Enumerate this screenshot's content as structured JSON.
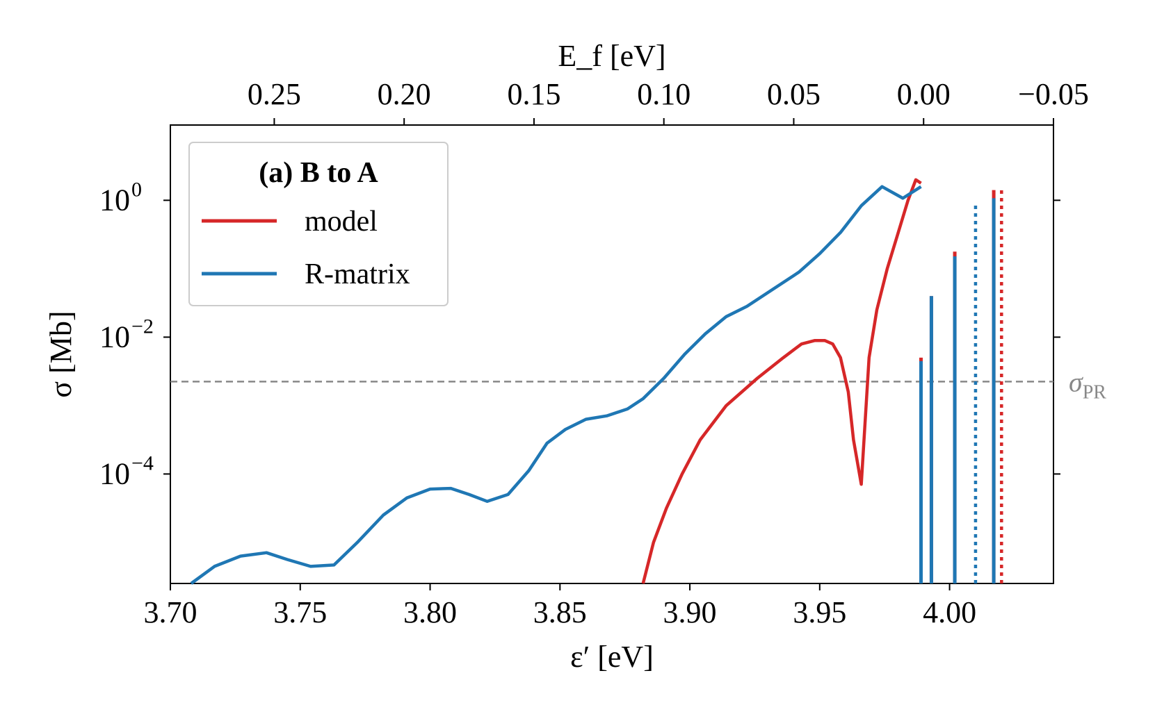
{
  "chart_data": {
    "type": "line",
    "title": "",
    "xlabel": "ε′ [eV]",
    "x2label": "E_f [eV]",
    "ylabel": "σ [Mb]",
    "xlim": [
      3.7,
      4.04
    ],
    "ylim_log10": [
      -5.6,
      1.1
    ],
    "xticks": [
      3.7,
      3.75,
      3.8,
      3.85,
      3.9,
      3.95,
      4.0
    ],
    "xtick_labels": [
      "3.70",
      "3.75",
      "3.80",
      "3.85",
      "3.90",
      "3.95",
      "4.00"
    ],
    "x2_offset": 3.99,
    "x2ticks": [
      0.25,
      0.2,
      0.15,
      0.1,
      0.05,
      0.0,
      -0.05
    ],
    "x2tick_labels": [
      "0.25",
      "0.20",
      "0.15",
      "0.10",
      "0.05",
      "0.00",
      "−0.05"
    ],
    "yticks_log10": [
      0,
      -2,
      -4
    ],
    "ytick_labels": [
      {
        "base": "10",
        "exp": "0"
      },
      {
        "base": "10",
        "exp": "−2"
      },
      {
        "base": "10",
        "exp": "−4"
      }
    ],
    "reference_line": {
      "name": "σ",
      "subscript": "PR",
      "log10_value": -2.65,
      "color": "#888888"
    },
    "colors": {
      "model": "#d62728",
      "rmatrix": "#1f77b4"
    },
    "legend": {
      "title_prefix": "(a)",
      "title": "B to A",
      "placement": "upper-left",
      "entries": [
        {
          "label": "model",
          "color": "#d62728"
        },
        {
          "label": "R-matrix",
          "color": "#1f77b4"
        }
      ]
    },
    "series": [
      {
        "name": "model",
        "color": "#d62728",
        "x": [
          3.882,
          3.886,
          3.891,
          3.897,
          3.904,
          3.914,
          3.926,
          3.936,
          3.943,
          3.948,
          3.952,
          3.955,
          3.958,
          3.961,
          3.963,
          3.966,
          3.969,
          3.972,
          3.976,
          3.98,
          3.984,
          3.987,
          3.989
        ],
        "log10_y": [
          -5.6,
          -5.0,
          -4.5,
          -4.0,
          -3.5,
          -3.0,
          -2.6,
          -2.3,
          -2.1,
          -2.05,
          -2.05,
          -2.1,
          -2.3,
          -2.8,
          -3.5,
          -4.15,
          -2.3,
          -1.6,
          -1.0,
          -0.5,
          0.0,
          0.3,
          0.25
        ]
      },
      {
        "name": "R-matrix",
        "color": "#1f77b4",
        "x": [
          3.708,
          3.717,
          3.727,
          3.737,
          3.745,
          3.754,
          3.763,
          3.772,
          3.782,
          3.791,
          3.8,
          3.808,
          3.815,
          3.822,
          3.83,
          3.838,
          3.845,
          3.852,
          3.86,
          3.868,
          3.876,
          3.882,
          3.89,
          3.898,
          3.906,
          3.914,
          3.922,
          3.932,
          3.942,
          3.95,
          3.958,
          3.966,
          3.974,
          3.982,
          3.989
        ],
        "log10_y": [
          -5.6,
          -5.35,
          -5.2,
          -5.15,
          -5.25,
          -5.35,
          -5.33,
          -5.0,
          -4.6,
          -4.35,
          -4.22,
          -4.21,
          -4.3,
          -4.4,
          -4.3,
          -3.95,
          -3.55,
          -3.35,
          -3.2,
          -3.15,
          -3.05,
          -2.9,
          -2.6,
          -2.25,
          -1.95,
          -1.7,
          -1.55,
          -1.3,
          -1.05,
          -0.78,
          -0.47,
          -0.08,
          0.2,
          0.03,
          0.2
        ]
      }
    ],
    "stick_lines": [
      {
        "x": 3.989,
        "log10_y_model": -2.3,
        "log10_y_rmatrix": -2.35
      },
      {
        "x": 3.993,
        "log10_y_model": -1.4,
        "log10_y_rmatrix": -1.4
      },
      {
        "x": 4.002,
        "log10_y_model": -0.75,
        "log10_y_rmatrix": -0.82
      }
    ],
    "dotted_lines": [
      {
        "x": 4.01,
        "log10_top": -0.05,
        "series": "R-matrix"
      },
      {
        "x": 4.017,
        "log10_top": 0.15,
        "series": "model-and-R-matrix"
      },
      {
        "x": 4.02,
        "log10_top": 0.15,
        "series": "model"
      }
    ]
  }
}
